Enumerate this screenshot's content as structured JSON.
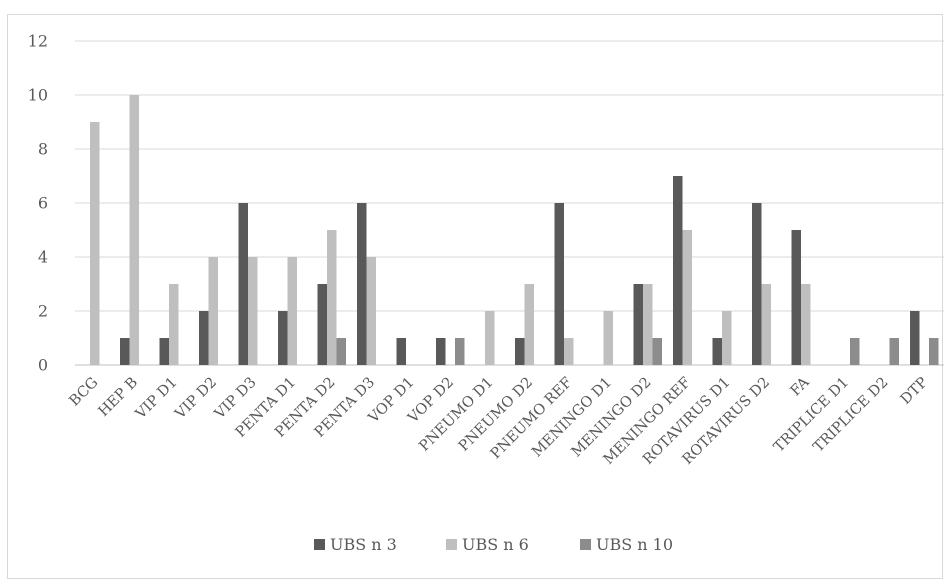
{
  "chart_data": {
    "type": "bar",
    "categories": [
      "BCG",
      "HEP B",
      "VIP D1",
      "VIP D2",
      "VIP D3",
      "PENTA D1",
      "PENTA D2",
      "PENTA D3",
      "VOP D1",
      "VOP D2",
      "PNEUMO D1",
      "PNEUMO D2",
      "PNEUMO REF",
      "MENINGO D1",
      "MENINGO D2",
      "MENINGO REF",
      "ROTAVIRUS D1",
      "ROTAVIRUS D2",
      "FA",
      "TRIPLICE D1",
      "TRIPLICE D2",
      "DTP"
    ],
    "series": [
      {
        "name": "UBS n 3",
        "color": "#595959",
        "values": [
          0,
          1,
          1,
          2,
          6,
          2,
          3,
          6,
          1,
          1,
          0,
          1,
          6,
          0,
          3,
          7,
          1,
          6,
          5,
          0,
          0,
          2
        ]
      },
      {
        "name": "UBS n 6",
        "color": "#bfbfbf",
        "values": [
          9,
          10,
          3,
          4,
          4,
          4,
          5,
          4,
          0,
          0,
          2,
          3,
          1,
          2,
          3,
          5,
          2,
          3,
          3,
          0,
          0,
          0
        ]
      },
      {
        "name": "UBS n 10",
        "color": "#8c8c8c",
        "values": [
          0,
          0,
          0,
          0,
          0,
          0,
          1,
          0,
          0,
          1,
          0,
          0,
          0,
          0,
          1,
          0,
          0,
          0,
          0,
          1,
          1,
          1
        ]
      }
    ],
    "ylim": [
      0,
      12
    ],
    "yticks": [
      0,
      2,
      4,
      6,
      8,
      10,
      12
    ],
    "grid": true,
    "legend_position": "bottom",
    "title": "",
    "xlabel": "",
    "ylabel": ""
  }
}
